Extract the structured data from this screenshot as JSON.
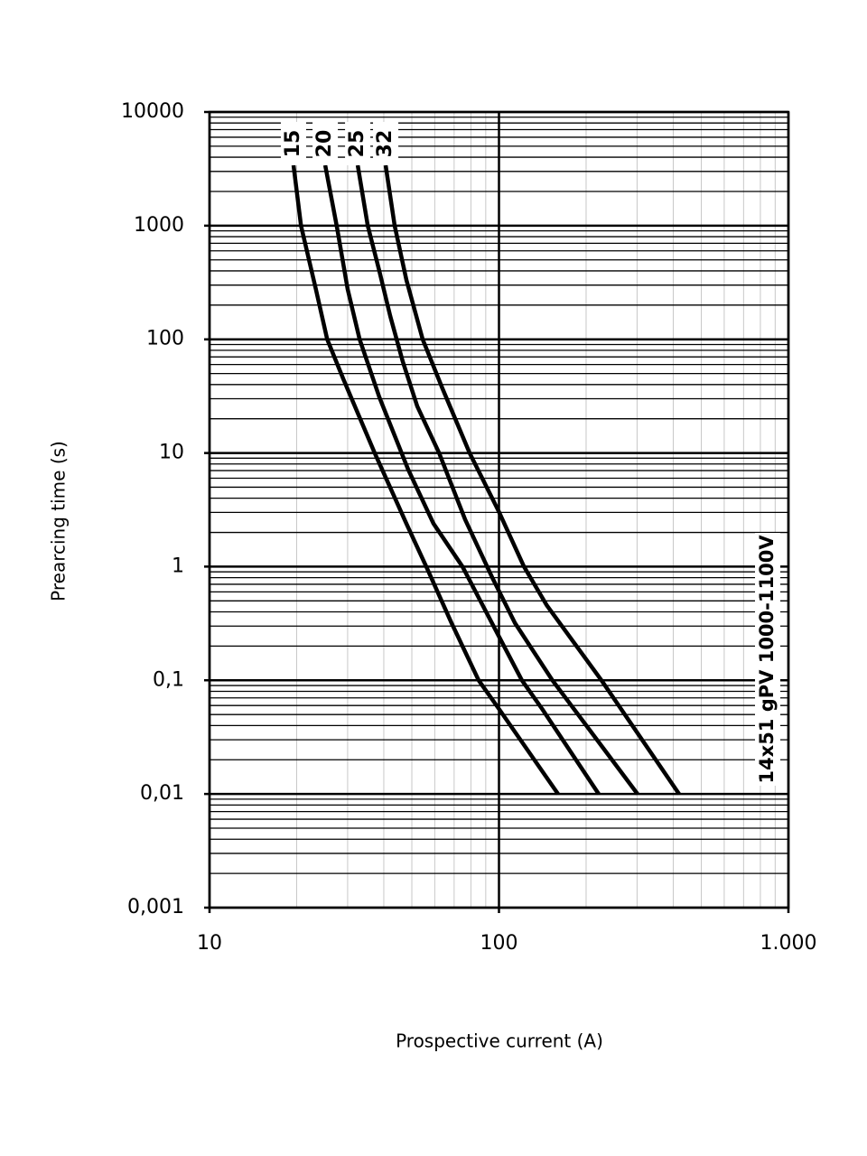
{
  "chart_data": {
    "type": "line",
    "x_label": "Prospective current (A)",
    "y_label": "Prearcing time (s)",
    "annotation": "14x51 gPV 1000-1100V",
    "log_x": true,
    "log_y": true,
    "grid": true,
    "xlim": [
      10,
      1000
    ],
    "ylim": [
      0.001,
      10000
    ],
    "xticks": [
      10,
      100,
      {
        "value": 1000,
        "label": "1.000"
      }
    ],
    "yticks": [
      {
        "value": 0.001,
        "label": "0,001"
      },
      {
        "value": 0.01,
        "label": "0,01"
      },
      {
        "value": 0.1,
        "label": "0,1"
      },
      1,
      10,
      100,
      1000,
      10000
    ],
    "series": [
      {
        "name": "15",
        "color": "#000000",
        "x": [
          19.5,
          20.7,
          23.3,
          25.5,
          29,
          37.2,
          47.9,
          56.1,
          68.6,
          85.1,
          100,
          160
        ],
        "values": [
          3400,
          1000,
          277,
          100,
          44.6,
          10,
          2.39,
          1,
          0.319,
          0.1,
          0.056,
          0.01
        ]
      },
      {
        "name": "20",
        "color": "#000000",
        "x": [
          25.1,
          27.5,
          30,
          33,
          38.6,
          48.5,
          59.4,
          74.8,
          100,
          120,
          141,
          221
        ],
        "values": [
          3400,
          1000,
          277,
          100,
          31,
          7.2,
          2.39,
          1,
          0.243,
          0.1,
          0.056,
          0.01
        ]
      },
      {
        "name": "25",
        "color": "#000000",
        "x": [
          32.5,
          35.2,
          38.6,
          42.1,
          46.5,
          52.2,
          62.1,
          76.4,
          94.8,
          113.6,
          153,
          301
        ],
        "values": [
          3400,
          1000,
          400,
          160,
          64,
          25.8,
          10,
          2.6,
          0.8,
          0.319,
          0.1,
          0.01
        ]
      },
      {
        "name": "32",
        "color": "#000000",
        "x": [
          40.6,
          43.6,
          47.9,
          54.5,
          63.8,
          79.2,
          100,
          122,
          146,
          226,
          419
        ],
        "values": [
          3400,
          1000,
          333,
          100,
          37,
          10,
          3.03,
          1,
          0.46,
          0.1,
          0.01
        ]
      }
    ]
  }
}
